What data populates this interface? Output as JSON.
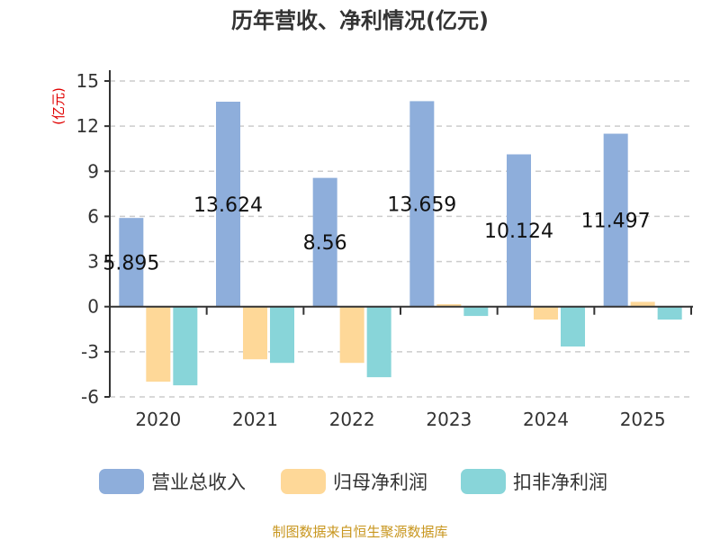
{
  "chart_data": {
    "type": "bar",
    "title": "历年营收、净利情况(亿元)",
    "ylabel": "(亿元)",
    "categories": [
      "2020",
      "2021",
      "2022",
      "2023",
      "2024",
      "2025"
    ],
    "ylim": [
      -6,
      15
    ],
    "yticks": [
      15,
      12,
      9,
      6,
      3,
      0,
      -3,
      -6
    ],
    "grid": true,
    "legend_position": "bottom",
    "series": [
      {
        "name": "营业总收入",
        "color": "#8eaedb",
        "values": [
          5.895,
          13.624,
          8.56,
          13.659,
          10.124,
          11.497
        ],
        "labels": [
          "5.895",
          "13.624",
          "8.56",
          "13.659",
          "10.124",
          "11.497"
        ]
      },
      {
        "name": "归母净利润",
        "color": "#fed898",
        "values": [
          -4.99,
          -3.5,
          -3.74,
          0.16,
          -0.86,
          0.32
        ]
      },
      {
        "name": "扣非净利润",
        "color": "#88d5d9",
        "values": [
          -5.23,
          -3.74,
          -4.69,
          -0.62,
          -2.65,
          -0.86
        ]
      }
    ]
  },
  "footer": "制图数据来自恒生聚源数据库",
  "colors": {
    "ylabel": "#e00000",
    "footer": "#c8961e",
    "axis": "#333333"
  }
}
